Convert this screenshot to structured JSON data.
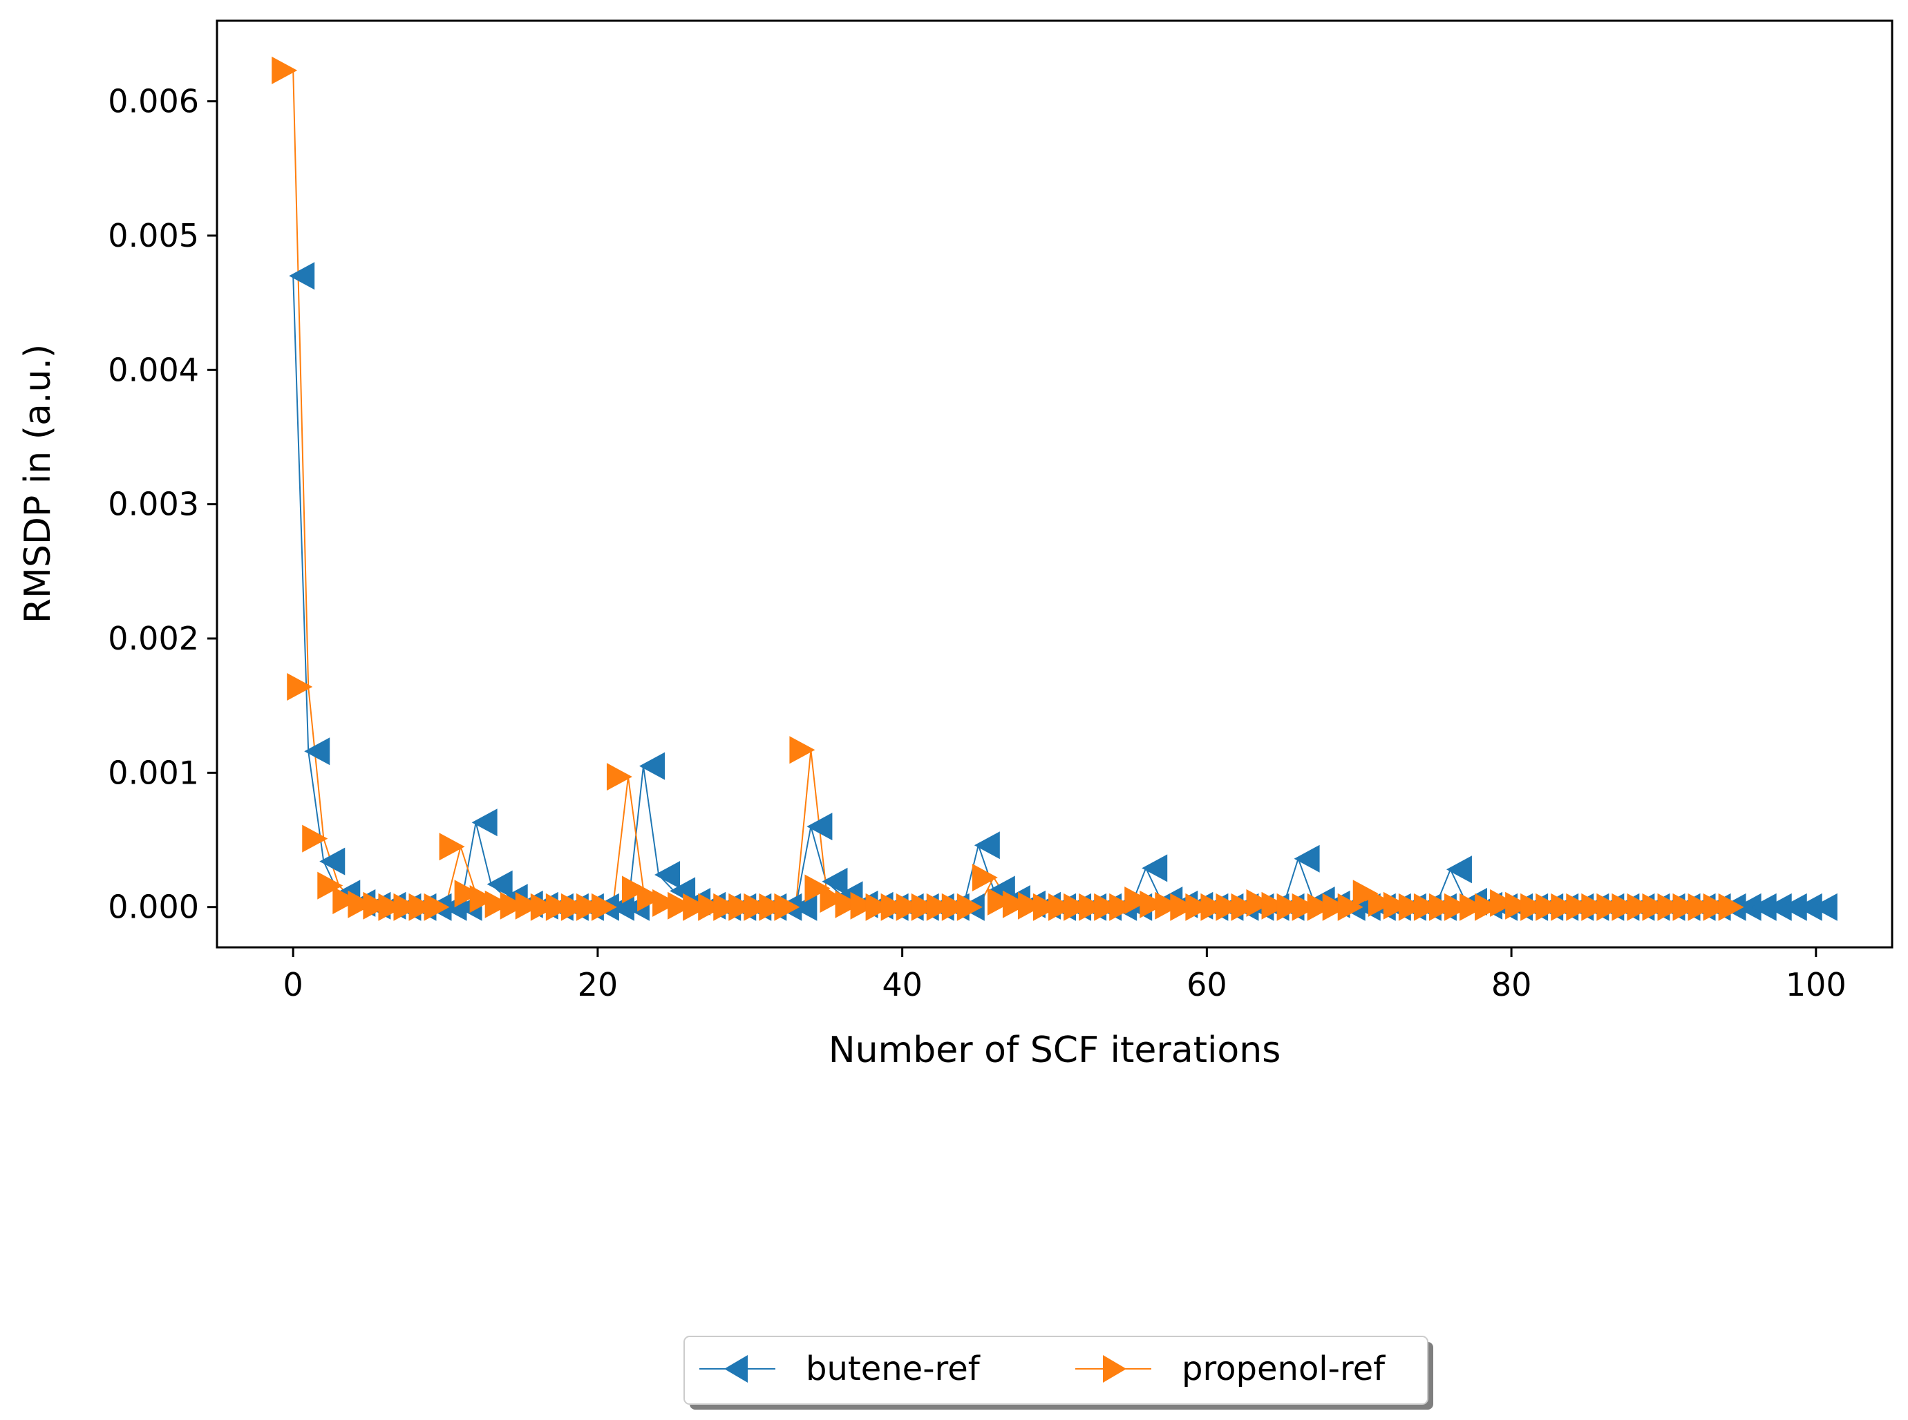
{
  "chart_data": {
    "type": "line",
    "title": "",
    "xlabel": "Number of SCF iterations",
    "ylabel": "RMSDP in (a.u.)",
    "xlim": [
      -5,
      105
    ],
    "ylim": [
      -0.0003,
      0.0066
    ],
    "xticks": [
      0,
      20,
      40,
      60,
      80,
      100
    ],
    "xtick_labels": [
      "0",
      "20",
      "40",
      "60",
      "80",
      "100"
    ],
    "yticks": [
      0.0,
      0.001,
      0.002,
      0.003,
      0.004,
      0.005,
      0.006
    ],
    "ytick_labels": [
      "0.000",
      "0.001",
      "0.002",
      "0.003",
      "0.004",
      "0.005",
      "0.006"
    ],
    "grid": false,
    "legend_position": "bottom-center, below plot",
    "series": [
      {
        "name": "butene-ref",
        "color": "#1f77b4",
        "marker": "triangle-left",
        "x": [
          0,
          1,
          2,
          3,
          4,
          5,
          6,
          7,
          8,
          9,
          10,
          11,
          12,
          13,
          14,
          15,
          16,
          17,
          18,
          19,
          20,
          21,
          22,
          23,
          24,
          25,
          26,
          27,
          28,
          29,
          30,
          31,
          32,
          33,
          34,
          35,
          36,
          37,
          38,
          39,
          40,
          41,
          42,
          43,
          44,
          45,
          46,
          47,
          48,
          49,
          50,
          51,
          52,
          53,
          54,
          55,
          56,
          57,
          58,
          59,
          60,
          61,
          62,
          63,
          64,
          65,
          66,
          67,
          68,
          69,
          70,
          71,
          72,
          73,
          74,
          75,
          76,
          77,
          78,
          79,
          80,
          81,
          82,
          83,
          84,
          85,
          86,
          87,
          88,
          89,
          90,
          91,
          92,
          93,
          94,
          95,
          96,
          97,
          98,
          99,
          100
        ],
        "y": [
          0.0047,
          0.00116,
          0.00034,
          0.0001,
          3e-05,
          1e-05,
          1e-05,
          0.0,
          0.0,
          0.0,
          0.0,
          0.0,
          0.00063,
          0.00017,
          7e-05,
          2e-05,
          1e-05,
          0.0,
          0.0,
          0.0,
          0.0,
          0.0,
          0.0,
          0.00105,
          0.00024,
          0.00012,
          4e-05,
          1e-05,
          0.0,
          0.0,
          0.0,
          0.0,
          0.0,
          0.0,
          0.0006,
          0.00019,
          9e-05,
          2e-05,
          1e-05,
          0.0,
          0.0,
          0.0,
          0.0,
          0.0,
          0.0,
          0.00046,
          0.00013,
          6e-05,
          2e-05,
          1e-05,
          0.0,
          0.0,
          0.0,
          0.0,
          0.0,
          0.0,
          0.00029,
          5e-05,
          2e-05,
          1e-05,
          0.0,
          0.0,
          0.0,
          0.0,
          0.0,
          0.0,
          0.00036,
          5e-05,
          2e-05,
          0.0,
          0.0,
          0.0,
          0.0,
          0.0,
          0.0,
          0.0,
          0.00028,
          4e-05,
          1e-05,
          0.0,
          0.0,
          0.0,
          0.0,
          0.0,
          0.0,
          0.0,
          0.0,
          0.0,
          0.0,
          0.0,
          0.0,
          0.0,
          0.0,
          0.0,
          0.0,
          0.0,
          0.0,
          0.0,
          0.0,
          0.0,
          0.0
        ]
      },
      {
        "name": "propenol-ref",
        "color": "#ff7f0e",
        "marker": "triangle-right",
        "x": [
          0,
          1,
          2,
          3,
          4,
          5,
          6,
          7,
          8,
          9,
          10,
          11,
          12,
          13,
          14,
          15,
          16,
          17,
          18,
          19,
          20,
          21,
          22,
          23,
          24,
          25,
          26,
          27,
          28,
          29,
          30,
          31,
          32,
          33,
          34,
          35,
          36,
          37,
          38,
          39,
          40,
          41,
          42,
          43,
          44,
          45,
          46,
          47,
          48,
          49,
          50,
          51,
          52,
          53,
          54,
          55,
          56,
          57,
          58,
          59,
          60,
          61,
          62,
          63,
          64,
          65,
          66,
          67,
          68,
          69,
          70,
          71,
          72,
          73,
          74,
          75,
          76,
          77,
          78,
          79,
          80,
          81,
          82,
          83,
          84,
          85,
          86,
          87,
          88,
          89,
          90,
          91,
          92,
          93,
          94,
          95
        ],
        "y": [
          0.00623,
          0.00164,
          0.00051,
          0.00016,
          5e-05,
          2e-05,
          1e-05,
          0.0,
          0.0,
          0.0,
          0.0,
          0.00045,
          0.0001,
          6e-05,
          2e-05,
          1e-05,
          1e-05,
          0.0,
          0.0,
          0.0,
          0.0,
          0.0,
          0.00097,
          0.00013,
          7e-05,
          3e-05,
          1e-05,
          0.0,
          0.0,
          0.0,
          0.0,
          0.0,
          0.0,
          0.0,
          0.00117,
          0.00014,
          6e-05,
          2e-05,
          1e-05,
          0.0,
          0.0,
          0.0,
          0.0,
          0.0,
          0.0,
          0.0,
          0.00022,
          4e-05,
          2e-05,
          1e-05,
          0.0,
          0.0,
          0.0,
          0.0,
          0.0,
          0.0,
          5e-05,
          2e-05,
          1e-05,
          0.0,
          0.0,
          0.0,
          0.0,
          0.0,
          3e-05,
          1e-05,
          0.0,
          0.0,
          0.0,
          0.0,
          0.0,
          0.0001,
          3e-05,
          1e-05,
          0.0,
          0.0,
          0.0,
          0.0,
          0.0,
          0.0,
          3e-05,
          1e-05,
          0.0,
          0.0,
          0.0,
          0.0,
          0.0,
          0.0,
          0.0,
          0.0,
          0.0,
          0.0,
          0.0,
          0.0,
          0.0,
          0.0
        ]
      }
    ]
  }
}
